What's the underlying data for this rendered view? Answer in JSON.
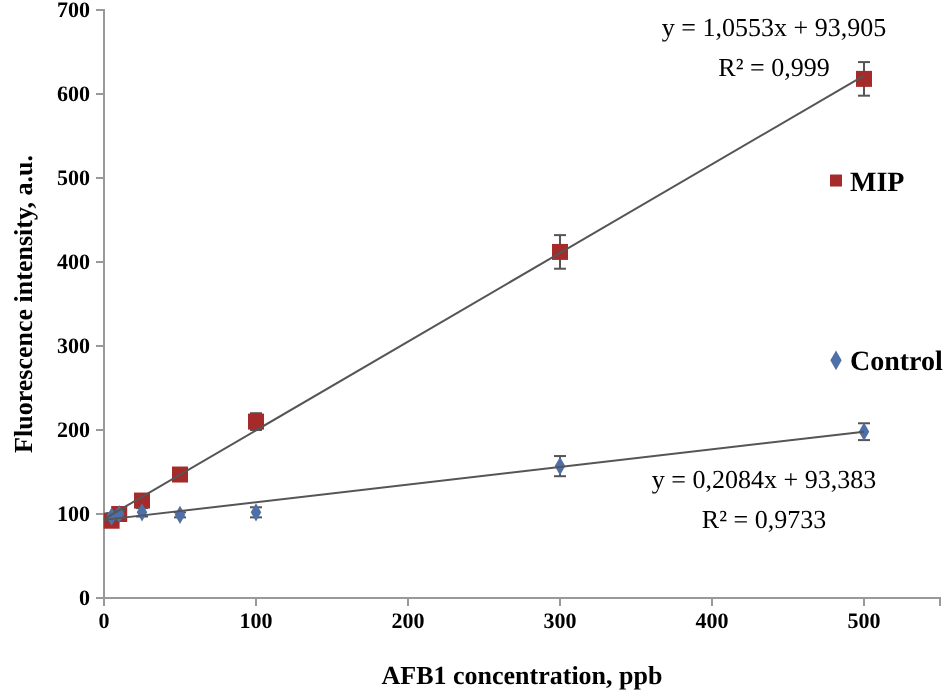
{
  "chart_data": {
    "type": "scatter",
    "xlabel": "AFB1 concentration, ppb",
    "ylabel": "Fluorescence intensity,  a.u.",
    "xlim": [
      0,
      550
    ],
    "xticks": [
      0,
      100,
      200,
      300,
      400,
      500
    ],
    "ylim": [
      0,
      700
    ],
    "yticks": [
      0,
      100,
      200,
      300,
      400,
      500,
      600,
      700
    ],
    "grid": false,
    "legend": "right",
    "series": [
      {
        "name": "MIP",
        "color": "#a52a2a",
        "marker": "square",
        "x": [
          5,
          10,
          25,
          50,
          100,
          300,
          500
        ],
        "values": [
          92,
          100,
          116,
          147,
          210,
          412,
          618
        ],
        "errors": [
          5,
          5,
          5,
          5,
          10,
          20,
          20
        ]
      },
      {
        "name": "Control",
        "color": "#4f6fa8",
        "marker": "diamond",
        "x": [
          5,
          10,
          25,
          50,
          100,
          300,
          500
        ],
        "values": [
          97,
          100,
          102,
          99,
          102,
          157,
          198
        ],
        "errors": [
          4,
          4,
          5,
          3,
          6,
          12,
          10
        ]
      },
      {
        "type": "line",
        "color": "#555555",
        "marker": "none",
        "x": [
          0,
          500
        ],
        "values": [
          94,
          622
        ]
      },
      {
        "type": "line",
        "color": "#555555",
        "marker": "none",
        "x": [
          0,
          500
        ],
        "values": [
          93,
          198
        ]
      }
    ],
    "annotations": [
      "y = 1,0553x + 93,905",
      "R² = 0,999",
      "y = 0,2084x + 93,383",
      "R² = 0,9733"
    ]
  }
}
